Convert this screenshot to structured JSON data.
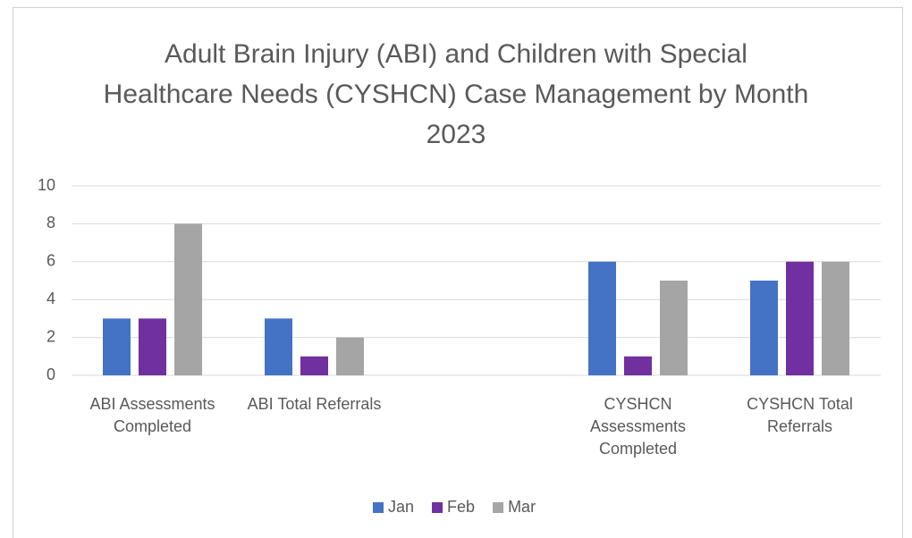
{
  "chart_data": {
    "type": "bar",
    "title": "Adult Brain Injury (ABI) and Children with Special Healthcare Needs (CYSHCN) Case Management by Month 2023",
    "categories": [
      "ABI Assessments Completed",
      "ABI Total Referrals",
      null,
      "CYSHCN Assessments Completed",
      "CYSHCN Total Referrals"
    ],
    "series": [
      {
        "name": "Jan",
        "color": "#4472c4",
        "values": [
          3,
          3,
          null,
          6,
          5
        ]
      },
      {
        "name": "Feb",
        "color": "#7030a0",
        "values": [
          3,
          1,
          null,
          1,
          6
        ]
      },
      {
        "name": "Mar",
        "color": "#a5a5a5",
        "values": [
          8,
          2,
          null,
          5,
          6
        ]
      }
    ],
    "ylim": [
      0,
      10
    ],
    "yticks": [
      0,
      2,
      4,
      6,
      8,
      10
    ],
    "grid": true,
    "legend": "bottom"
  }
}
